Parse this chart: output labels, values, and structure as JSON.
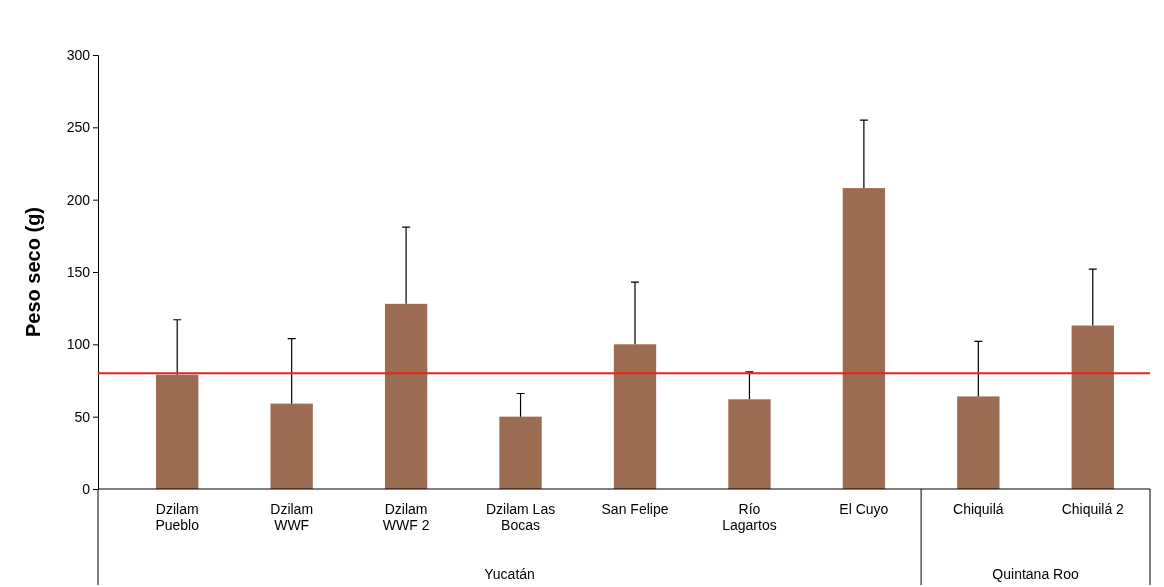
{
  "chart_data": {
    "type": "bar",
    "ylabel": "Peso seco (g)",
    "categories": [
      "Dzilam Pueblo",
      "Dzilam WWF",
      "Dzilam WWF 2",
      "Dzilam Las Bocas",
      "San Felipe",
      "Río Lagartos",
      "El Cuyo",
      "Chiquilá",
      "Chiquilá 2"
    ],
    "values": [
      79,
      59,
      128,
      50,
      100,
      62,
      208,
      64,
      113
    ],
    "errors": [
      [
        79,
        117
      ],
      [
        59,
        104
      ],
      [
        128,
        181
      ],
      [
        50,
        66
      ],
      [
        100,
        143
      ],
      [
        62,
        81
      ],
      [
        208,
        255
      ],
      [
        64,
        102
      ],
      [
        113,
        152
      ]
    ],
    "color": "#9b6b52",
    "ylim": [
      0,
      300
    ],
    "yticks": [
      0,
      50,
      100,
      150,
      200,
      250,
      300
    ],
    "ref_lines": [
      {
        "axis": "y",
        "value": 80,
        "color": "#e8221c"
      }
    ],
    "annotations": [
      "Yucatán",
      "Quintana Roo"
    ],
    "grid": false
  }
}
